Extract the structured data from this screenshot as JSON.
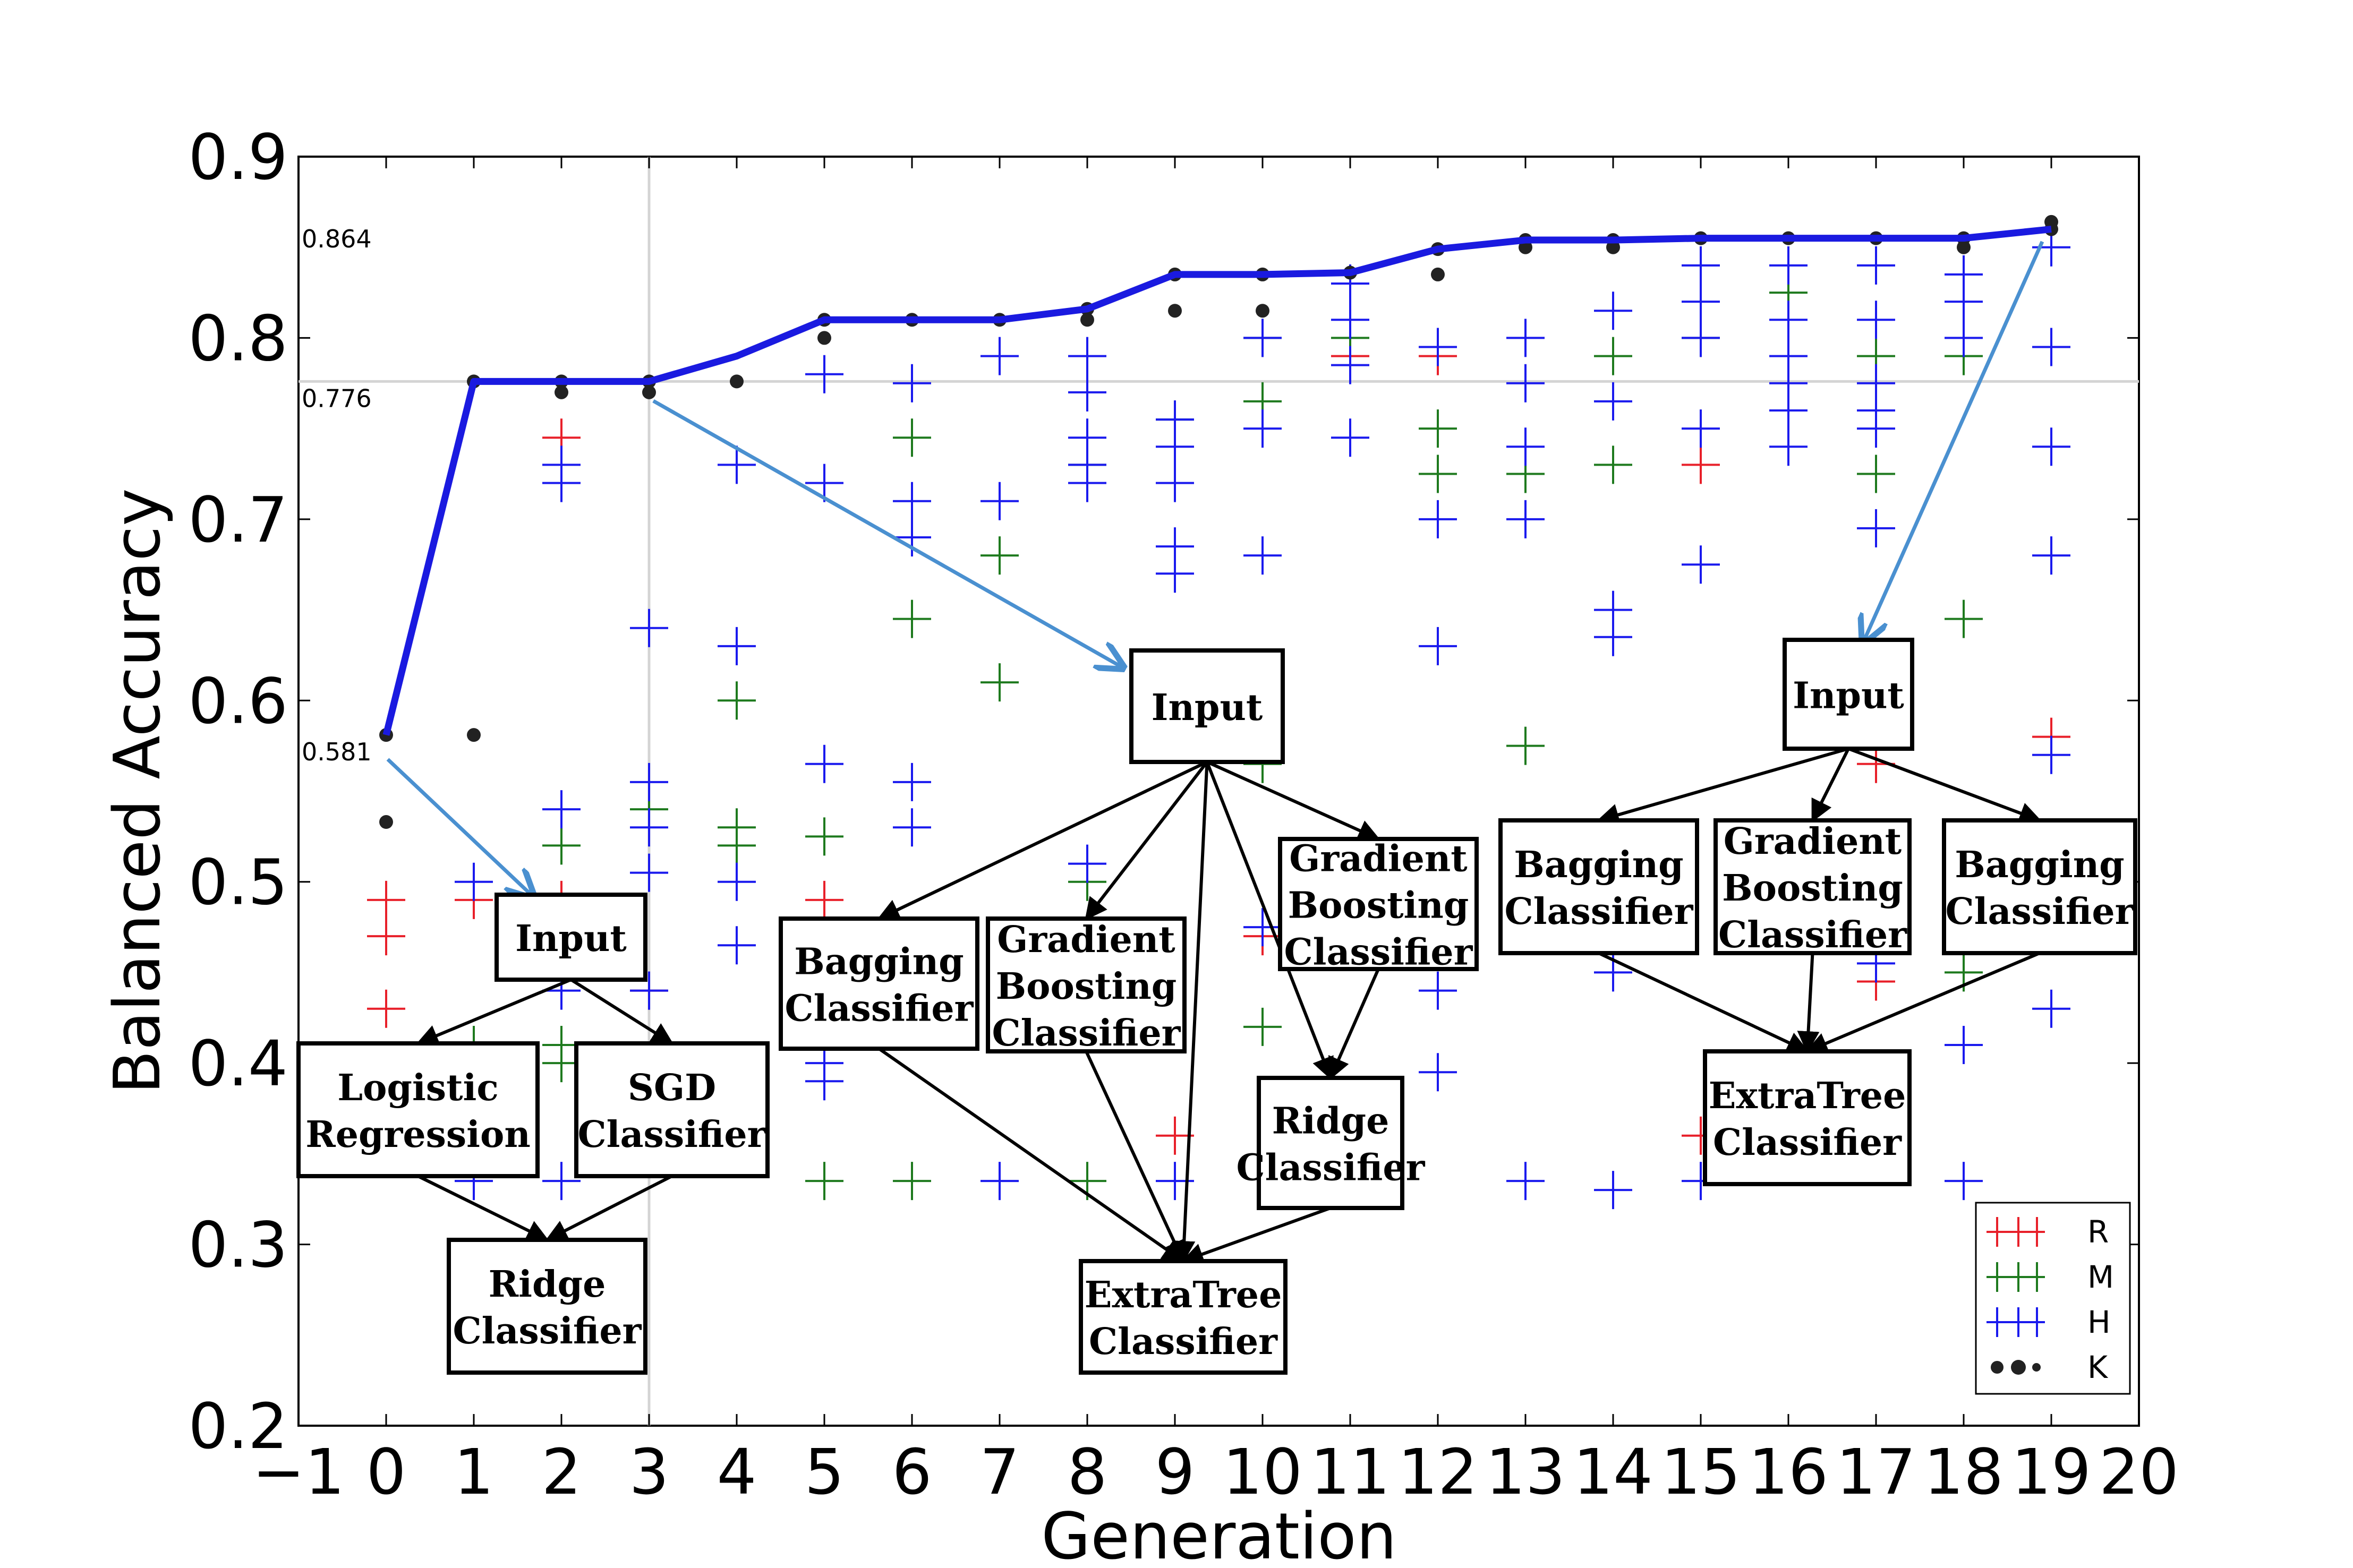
{
  "chart_data": {
    "type": "scatter",
    "xlabel": "Generation",
    "ylabel": "Balanced Accuracy",
    "xlim": [
      -1,
      20
    ],
    "ylim": [
      0.2,
      0.9
    ],
    "x_ticks": [
      -1,
      0,
      1,
      2,
      3,
      4,
      5,
      6,
      7,
      8,
      9,
      10,
      11,
      12,
      13,
      14,
      15,
      16,
      17,
      18,
      19,
      20
    ],
    "y_ticks": [
      0.2,
      0.3,
      0.4,
      0.5,
      0.6,
      0.7,
      0.8,
      0.9
    ],
    "grid": false,
    "reference_lines": [
      {
        "y": 0.776,
        "label": "0.776"
      },
      {
        "x": 3
      }
    ],
    "annotations": [
      {
        "text": "0.864",
        "y": 0.864
      },
      {
        "text": "0.776",
        "y": 0.776
      },
      {
        "text": "0.581",
        "y": 0.581
      }
    ],
    "legend": {
      "placement": "bottom-right",
      "entries": [
        {
          "label": "R",
          "color": "#e8202a"
        },
        {
          "label": "M",
          "color": "#1e7a1e"
        },
        {
          "label": "H",
          "color": "#1a1aee"
        },
        {
          "label": "K",
          "color": "#222222"
        }
      ]
    },
    "best_line": {
      "color": "#1a1ae0",
      "x": [
        0,
        1,
        2,
        3,
        4,
        5,
        6,
        7,
        8,
        9,
        10,
        11,
        12,
        13,
        14,
        15,
        16,
        17,
        18,
        19
      ],
      "y": [
        0.581,
        0.776,
        0.776,
        0.776,
        0.79,
        0.81,
        0.81,
        0.81,
        0.816,
        0.835,
        0.835,
        0.836,
        0.849,
        0.854,
        0.854,
        0.855,
        0.855,
        0.855,
        0.855,
        0.86
      ]
    },
    "series": [
      {
        "name": "R",
        "color": "#e8202a",
        "points": [
          [
            0,
            0.49
          ],
          [
            0,
            0.47
          ],
          [
            0,
            0.43
          ],
          [
            1,
            0.49
          ],
          [
            2,
            0.745
          ],
          [
            2,
            0.49
          ],
          [
            3,
            0.44
          ],
          [
            5,
            0.49
          ],
          [
            9,
            0.36
          ],
          [
            10,
            0.47
          ],
          [
            11,
            0.79
          ],
          [
            12,
            0.79
          ],
          [
            15,
            0.73
          ],
          [
            15,
            0.36
          ],
          [
            17,
            0.565
          ],
          [
            17,
            0.445
          ],
          [
            19,
            0.58
          ]
        ]
      },
      {
        "name": "M",
        "color": "#1e7a1e",
        "points": [
          [
            1,
            0.41
          ],
          [
            2,
            0.52
          ],
          [
            2,
            0.4
          ],
          [
            2,
            0.41
          ],
          [
            3,
            0.54
          ],
          [
            4,
            0.6
          ],
          [
            4,
            0.53
          ],
          [
            4,
            0.52
          ],
          [
            5,
            0.525
          ],
          [
            5,
            0.335
          ],
          [
            6,
            0.745
          ],
          [
            6,
            0.645
          ],
          [
            6,
            0.335
          ],
          [
            7,
            0.68
          ],
          [
            7,
            0.61
          ],
          [
            8,
            0.73
          ],
          [
            8,
            0.5
          ],
          [
            8,
            0.335
          ],
          [
            9,
            0.755
          ],
          [
            10,
            0.8
          ],
          [
            10,
            0.765
          ],
          [
            10,
            0.565
          ],
          [
            10,
            0.42
          ],
          [
            11,
            0.8
          ],
          [
            12,
            0.75
          ],
          [
            12,
            0.725
          ],
          [
            13,
            0.725
          ],
          [
            13,
            0.575
          ],
          [
            14,
            0.73
          ],
          [
            14,
            0.79
          ],
          [
            15,
            0.8
          ],
          [
            16,
            0.825
          ],
          [
            17,
            0.79
          ],
          [
            17,
            0.725
          ],
          [
            18,
            0.79
          ],
          [
            18,
            0.645
          ],
          [
            18,
            0.45
          ]
        ]
      },
      {
        "name": "H",
        "color": "#1a1aee",
        "points": [
          [
            1,
            0.5
          ],
          [
            1,
            0.335
          ],
          [
            2,
            0.73
          ],
          [
            2,
            0.72
          ],
          [
            2,
            0.54
          ],
          [
            2,
            0.44
          ],
          [
            2,
            0.335
          ],
          [
            3,
            0.64
          ],
          [
            3,
            0.555
          ],
          [
            3,
            0.53
          ],
          [
            3,
            0.505
          ],
          [
            3,
            0.44
          ],
          [
            4,
            0.73
          ],
          [
            4,
            0.63
          ],
          [
            4,
            0.5
          ],
          [
            4,
            0.465
          ],
          [
            5,
            0.78
          ],
          [
            5,
            0.72
          ],
          [
            5,
            0.565
          ],
          [
            5,
            0.4
          ],
          [
            5,
            0.39
          ],
          [
            6,
            0.775
          ],
          [
            6,
            0.71
          ],
          [
            6,
            0.69
          ],
          [
            6,
            0.555
          ],
          [
            6,
            0.53
          ],
          [
            7,
            0.79
          ],
          [
            7,
            0.71
          ],
          [
            7,
            0.335
          ],
          [
            8,
            0.79
          ],
          [
            8,
            0.77
          ],
          [
            8,
            0.745
          ],
          [
            8,
            0.73
          ],
          [
            8,
            0.72
          ],
          [
            8,
            0.51
          ],
          [
            9,
            0.755
          ],
          [
            9,
            0.74
          ],
          [
            9,
            0.72
          ],
          [
            9,
            0.685
          ],
          [
            9,
            0.67
          ],
          [
            9,
            0.335
          ],
          [
            10,
            0.8
          ],
          [
            10,
            0.75
          ],
          [
            10,
            0.68
          ],
          [
            10,
            0.475
          ],
          [
            11,
            0.83
          ],
          [
            11,
            0.81
          ],
          [
            11,
            0.785
          ],
          [
            11,
            0.745
          ],
          [
            12,
            0.795
          ],
          [
            12,
            0.7
          ],
          [
            12,
            0.63
          ],
          [
            12,
            0.44
          ],
          [
            12,
            0.395
          ],
          [
            13,
            0.8
          ],
          [
            13,
            0.775
          ],
          [
            13,
            0.74
          ],
          [
            13,
            0.7
          ],
          [
            13,
            0.335
          ],
          [
            14,
            0.815
          ],
          [
            14,
            0.765
          ],
          [
            14,
            0.65
          ],
          [
            14,
            0.635
          ],
          [
            14,
            0.45
          ],
          [
            14,
            0.33
          ],
          [
            15,
            0.84
          ],
          [
            15,
            0.82
          ],
          [
            15,
            0.8
          ],
          [
            15,
            0.75
          ],
          [
            15,
            0.675
          ],
          [
            15,
            0.335
          ],
          [
            16,
            0.84
          ],
          [
            16,
            0.81
          ],
          [
            16,
            0.79
          ],
          [
            16,
            0.775
          ],
          [
            16,
            0.76
          ],
          [
            16,
            0.74
          ],
          [
            17,
            0.84
          ],
          [
            17,
            0.81
          ],
          [
            17,
            0.775
          ],
          [
            17,
            0.76
          ],
          [
            17,
            0.75
          ],
          [
            17,
            0.695
          ],
          [
            17,
            0.455
          ],
          [
            18,
            0.835
          ],
          [
            18,
            0.82
          ],
          [
            18,
            0.8
          ],
          [
            18,
            0.41
          ],
          [
            18,
            0.335
          ],
          [
            19,
            0.85
          ],
          [
            19,
            0.795
          ],
          [
            19,
            0.74
          ],
          [
            19,
            0.68
          ],
          [
            19,
            0.57
          ],
          [
            19,
            0.43
          ]
        ]
      },
      {
        "name": "K",
        "color": "#222222",
        "points": [
          [
            0,
            0.581
          ],
          [
            0,
            0.533
          ],
          [
            1,
            0.776
          ],
          [
            1,
            0.581
          ],
          [
            2,
            0.776
          ],
          [
            2,
            0.77
          ],
          [
            3,
            0.776
          ],
          [
            3,
            0.77
          ],
          [
            4,
            0.776
          ],
          [
            5,
            0.81
          ],
          [
            5,
            0.8
          ],
          [
            6,
            0.81
          ],
          [
            7,
            0.81
          ],
          [
            8,
            0.816
          ],
          [
            8,
            0.81
          ],
          [
            9,
            0.835
          ],
          [
            9,
            0.815
          ],
          [
            10,
            0.835
          ],
          [
            10,
            0.815
          ],
          [
            11,
            0.836
          ],
          [
            12,
            0.849
          ],
          [
            12,
            0.835
          ],
          [
            13,
            0.854
          ],
          [
            13,
            0.85
          ],
          [
            14,
            0.854
          ],
          [
            14,
            0.85
          ],
          [
            15,
            0.855
          ],
          [
            16,
            0.855
          ],
          [
            17,
            0.855
          ],
          [
            18,
            0.855
          ],
          [
            18,
            0.85
          ],
          [
            19,
            0.86
          ],
          [
            19,
            0.864
          ]
        ]
      }
    ],
    "pipeline_diagrams": [
      {
        "boxes": [
          {
            "id": "in",
            "text": [
              "Input"
            ]
          },
          {
            "id": "lr",
            "text": [
              "Logistic",
              "Regression"
            ]
          },
          {
            "id": "sgd",
            "text": [
              "SGD",
              "Classifier"
            ]
          },
          {
            "id": "ridge",
            "text": [
              "Ridge",
              "Classifier"
            ]
          }
        ],
        "edges": [
          [
            "in",
            "lr"
          ],
          [
            "in",
            "sgd"
          ],
          [
            "lr",
            "ridge"
          ],
          [
            "sgd",
            "ridge"
          ]
        ]
      },
      {
        "boxes": [
          {
            "id": "in",
            "text": [
              "Input"
            ]
          },
          {
            "id": "bag",
            "text": [
              "Bagging",
              "Classifier"
            ]
          },
          {
            "id": "gb1",
            "text": [
              "Gradient",
              "Boosting",
              "Classifier"
            ]
          },
          {
            "id": "gb2",
            "text": [
              "Gradient",
              "Boosting",
              "Classifier"
            ]
          },
          {
            "id": "ridge",
            "text": [
              "Ridge",
              "Classifier"
            ]
          },
          {
            "id": "et",
            "text": [
              "ExtraTree",
              "Classifier"
            ]
          }
        ],
        "edges": [
          [
            "in",
            "bag"
          ],
          [
            "in",
            "gb1"
          ],
          [
            "in",
            "gb2"
          ],
          [
            "in",
            "ridge"
          ],
          [
            "in",
            "et"
          ],
          [
            "gb2",
            "ridge"
          ],
          [
            "bag",
            "et"
          ],
          [
            "gb1",
            "et"
          ],
          [
            "ridge",
            "et"
          ]
        ]
      },
      {
        "boxes": [
          {
            "id": "in",
            "text": [
              "Input"
            ]
          },
          {
            "id": "bag1",
            "text": [
              "Bagging",
              "Classifier"
            ]
          },
          {
            "id": "gb",
            "text": [
              "Gradient",
              "Boosting",
              "Classifier"
            ]
          },
          {
            "id": "bag2",
            "text": [
              "Bagging",
              "Classifier"
            ]
          },
          {
            "id": "et",
            "text": [
              "ExtraTree",
              "Classifier"
            ]
          }
        ],
        "edges": [
          [
            "in",
            "bag1"
          ],
          [
            "in",
            "gb"
          ],
          [
            "in",
            "bag2"
          ],
          [
            "bag1",
            "et"
          ],
          [
            "gb",
            "et"
          ],
          [
            "bag2",
            "et"
          ]
        ]
      }
    ]
  }
}
